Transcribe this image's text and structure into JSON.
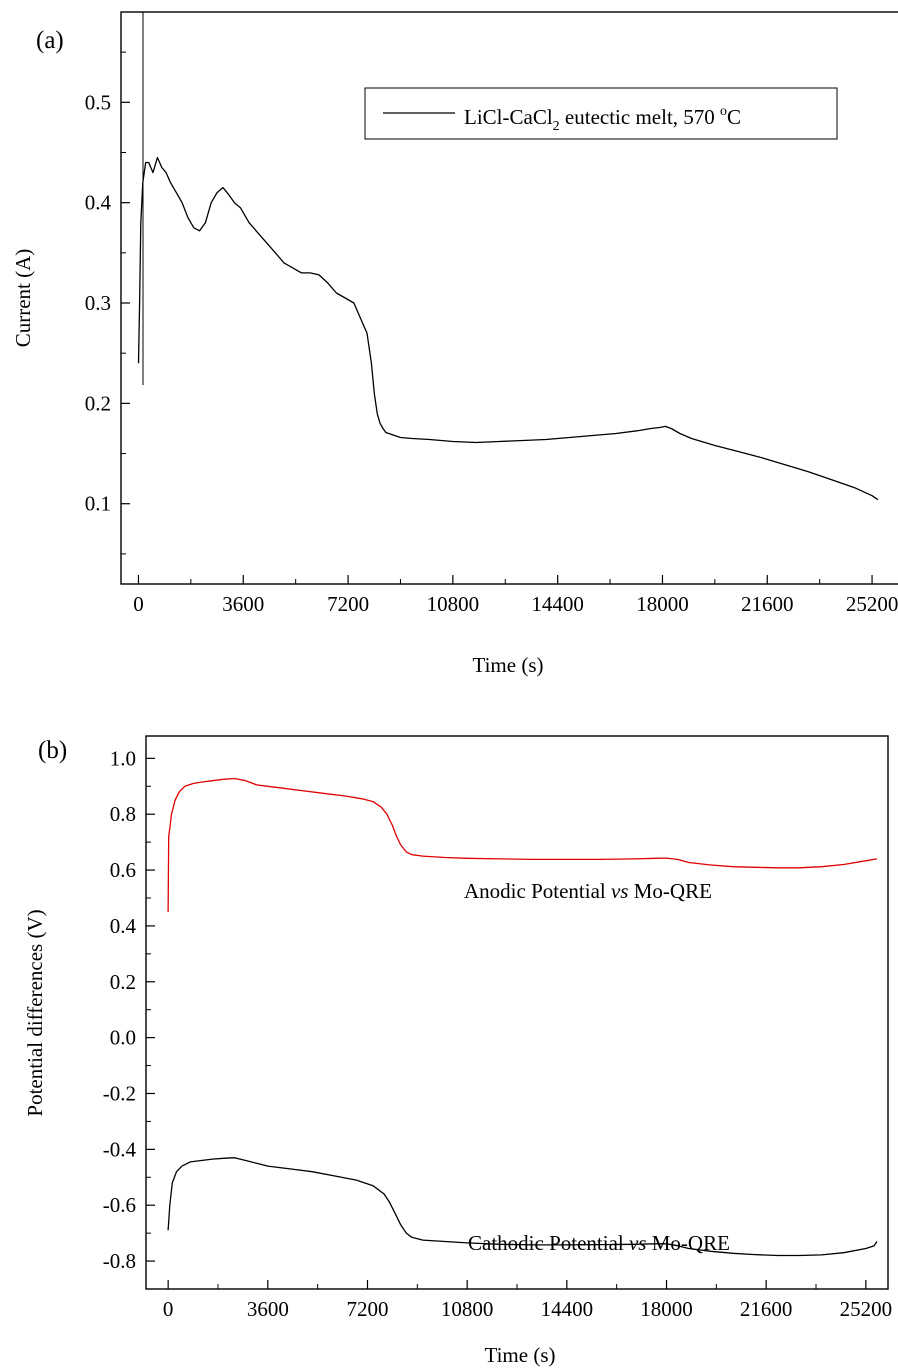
{
  "chart_data": [
    {
      "type": "line",
      "panel_label": "(a)",
      "xlabel": "Time (s)",
      "ylabel": "Current (A)",
      "xlim": [
        -600,
        26400
      ],
      "ylim": [
        0.02,
        0.59
      ],
      "xticks": [
        0,
        3600,
        7200,
        10800,
        14400,
        18000,
        21600,
        25200
      ],
      "xtick_labels": [
        "0",
        "3600",
        "7200",
        "10800",
        "14400",
        "18000",
        "21600",
        "25200"
      ],
      "yticks": [
        0.1,
        0.2,
        0.3,
        0.4,
        0.5
      ],
      "ytick_labels": [
        "0.1",
        "0.2",
        "0.3",
        "0.4",
        "0.5"
      ],
      "grid": false,
      "legend": {
        "position": "top-right",
        "entry_prefix": "LiCl-CaCl",
        "entry_subscript": "2",
        "entry_middle": " eutectic melt, 570 ",
        "entry_superscript": "o",
        "entry_suffix": "C"
      },
      "series": [
        {
          "name": "LiCl-CaCl2 eutectic melt, 570 oC",
          "color": "#000000",
          "x": [
            0,
            40,
            80,
            150,
            250,
            350,
            500,
            650,
            800,
            950,
            1100,
            1300,
            1500,
            1700,
            1900,
            2100,
            2300,
            2500,
            2700,
            2900,
            3100,
            3300,
            3500,
            3800,
            4100,
            4400,
            4700,
            5000,
            5300,
            5600,
            5900,
            6200,
            6500,
            6800,
            7100,
            7400,
            7700,
            7850,
            8000,
            8100,
            8200,
            8300,
            8400,
            8500,
            8600,
            8800,
            9000,
            9400,
            10000,
            10800,
            11600,
            12400,
            13200,
            14000,
            14800,
            15600,
            16400,
            17200,
            17600,
            17900,
            18100,
            18300,
            18600,
            19000,
            19800,
            20600,
            21400,
            22200,
            23000,
            23800,
            24600,
            25200,
            25400
          ],
          "y": [
            0.24,
            0.3,
            0.38,
            0.42,
            0.44,
            0.44,
            0.43,
            0.445,
            0.435,
            0.43,
            0.42,
            0.41,
            0.4,
            0.385,
            0.375,
            0.372,
            0.38,
            0.4,
            0.41,
            0.415,
            0.408,
            0.4,
            0.395,
            0.38,
            0.37,
            0.36,
            0.35,
            0.34,
            0.335,
            0.33,
            0.33,
            0.328,
            0.32,
            0.31,
            0.305,
            0.3,
            0.28,
            0.27,
            0.24,
            0.21,
            0.19,
            0.18,
            0.175,
            0.171,
            0.17,
            0.168,
            0.166,
            0.165,
            0.164,
            0.162,
            0.161,
            0.162,
            0.163,
            0.164,
            0.166,
            0.168,
            0.17,
            0.173,
            0.175,
            0.176,
            0.177,
            0.175,
            0.17,
            0.165,
            0.158,
            0.152,
            0.146,
            0.139,
            0.132,
            0.124,
            0.116,
            0.108,
            0.104
          ]
        }
      ]
    },
    {
      "type": "line",
      "panel_label": "(b)",
      "xlabel": "Time (s)",
      "ylabel": "Potential differences (V)",
      "xlim": [
        -800,
        26000
      ],
      "ylim": [
        -0.9,
        1.08
      ],
      "xticks": [
        0,
        3600,
        7200,
        10800,
        14400,
        18000,
        21600,
        25200
      ],
      "xtick_labels": [
        "0",
        "3600",
        "7200",
        "10800",
        "14400",
        "18000",
        "21600",
        "25200"
      ],
      "yticks": [
        -0.8,
        -0.6,
        -0.4,
        -0.2,
        0.0,
        0.2,
        0.4,
        0.6,
        0.8,
        1.0
      ],
      "ytick_labels": [
        "-0.8",
        "-0.6",
        "-0.4",
        "-0.2",
        "0.0",
        "0.2",
        "0.4",
        "0.6",
        "0.8",
        "1.0"
      ],
      "grid": false,
      "annotations": [
        {
          "prefix": "Anodic Potential ",
          "italic": "vs",
          "suffix": " Mo-QRE"
        },
        {
          "prefix": "Cathodic Potential ",
          "italic": "vs",
          "suffix": " Mo-QRE"
        }
      ],
      "series": [
        {
          "name": "Anodic Potential vs Mo-QRE",
          "color": "#e00000",
          "x": [
            0,
            20,
            60,
            120,
            250,
            400,
            600,
            900,
            1200,
            1600,
            2000,
            2400,
            2800,
            3200,
            3600,
            4000,
            4800,
            5600,
            6400,
            7000,
            7400,
            7700,
            7900,
            8100,
            8250,
            8400,
            8600,
            8800,
            9200,
            10000,
            10800,
            12000,
            13200,
            14400,
            15600,
            16800,
            17600,
            18000,
            18400,
            18800,
            19600,
            20400,
            21200,
            22000,
            22800,
            23600,
            24400,
            25000,
            25600
          ],
          "y": [
            0.45,
            0.72,
            0.75,
            0.8,
            0.85,
            0.88,
            0.9,
            0.91,
            0.915,
            0.92,
            0.925,
            0.928,
            0.92,
            0.905,
            0.9,
            0.895,
            0.885,
            0.875,
            0.865,
            0.855,
            0.845,
            0.825,
            0.8,
            0.76,
            0.72,
            0.69,
            0.665,
            0.655,
            0.65,
            0.645,
            0.642,
            0.64,
            0.638,
            0.638,
            0.638,
            0.64,
            0.642,
            0.643,
            0.638,
            0.627,
            0.618,
            0.612,
            0.61,
            0.608,
            0.608,
            0.612,
            0.62,
            0.63,
            0.64
          ]
        },
        {
          "name": "Cathodic Potential vs Mo-QRE",
          "color": "#000000",
          "x": [
            0,
            60,
            150,
            300,
            500,
            800,
            1200,
            1600,
            2000,
            2400,
            2800,
            3200,
            3600,
            4400,
            5200,
            6000,
            6800,
            7400,
            7800,
            8000,
            8200,
            8400,
            8600,
            8800,
            9200,
            10000,
            10800,
            12000,
            13200,
            14400,
            15600,
            16800,
            17600,
            18000,
            18400,
            18800,
            19600,
            20400,
            21200,
            22000,
            22800,
            23600,
            24400,
            25200,
            25500,
            25600
          ],
          "y": [
            -0.69,
            -0.6,
            -0.52,
            -0.48,
            -0.46,
            -0.445,
            -0.44,
            -0.435,
            -0.432,
            -0.43,
            -0.44,
            -0.45,
            -0.46,
            -0.47,
            -0.48,
            -0.495,
            -0.51,
            -0.53,
            -0.56,
            -0.59,
            -0.63,
            -0.67,
            -0.7,
            -0.715,
            -0.725,
            -0.73,
            -0.735,
            -0.74,
            -0.742,
            -0.742,
            -0.741,
            -0.74,
            -0.738,
            -0.738,
            -0.745,
            -0.755,
            -0.765,
            -0.772,
            -0.777,
            -0.78,
            -0.78,
            -0.778,
            -0.77,
            -0.755,
            -0.745,
            -0.73
          ]
        }
      ]
    }
  ]
}
